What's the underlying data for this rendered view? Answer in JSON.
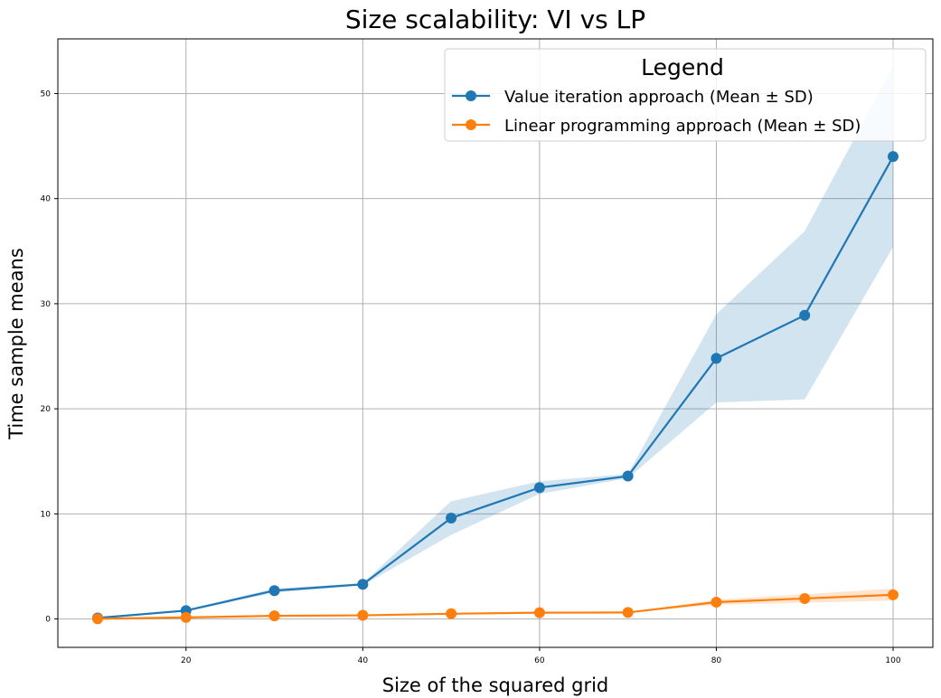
{
  "chart_data": {
    "type": "line",
    "title": "Size scalability: VI vs LP",
    "xlabel": "Size of the squared grid",
    "ylabel": "Time sample means",
    "x": [
      10,
      20,
      30,
      40,
      50,
      60,
      70,
      80,
      90,
      100
    ],
    "xlim": [
      5.5,
      104.5
    ],
    "ylim": [
      -2.7,
      55.2
    ],
    "xticks": [
      20,
      40,
      60,
      80,
      100
    ],
    "yticks": [
      0,
      10,
      20,
      30,
      40,
      50
    ],
    "grid": true,
    "legend": {
      "title": "Legend",
      "placement": "top-right"
    },
    "series": [
      {
        "name": "Value iteration approach (Mean ± SD)",
        "color": "#1f77b4",
        "band_color": "#1f77b4",
        "values": [
          0.1,
          0.8,
          2.7,
          3.3,
          9.6,
          12.5,
          13.6,
          24.8,
          28.9,
          44.0
        ],
        "lower": [
          0.1,
          0.7,
          2.5,
          3.2,
          8.0,
          11.9,
          13.4,
          20.6,
          20.9,
          35.4
        ],
        "upper": [
          0.1,
          0.9,
          2.9,
          3.4,
          11.2,
          13.1,
          13.8,
          29.0,
          36.9,
          52.6
        ]
      },
      {
        "name": "Linear programming approach (Mean ± SD)",
        "color": "#ff7f0e",
        "band_color": "#ff7f0e",
        "values": [
          0.02,
          0.15,
          0.3,
          0.35,
          0.5,
          0.6,
          0.62,
          1.6,
          1.95,
          2.3
        ],
        "lower": [
          0.02,
          0.14,
          0.28,
          0.33,
          0.47,
          0.57,
          0.59,
          1.35,
          1.55,
          1.75
        ],
        "upper": [
          0.02,
          0.16,
          0.32,
          0.37,
          0.53,
          0.63,
          0.65,
          1.85,
          2.35,
          2.9
        ]
      }
    ]
  }
}
